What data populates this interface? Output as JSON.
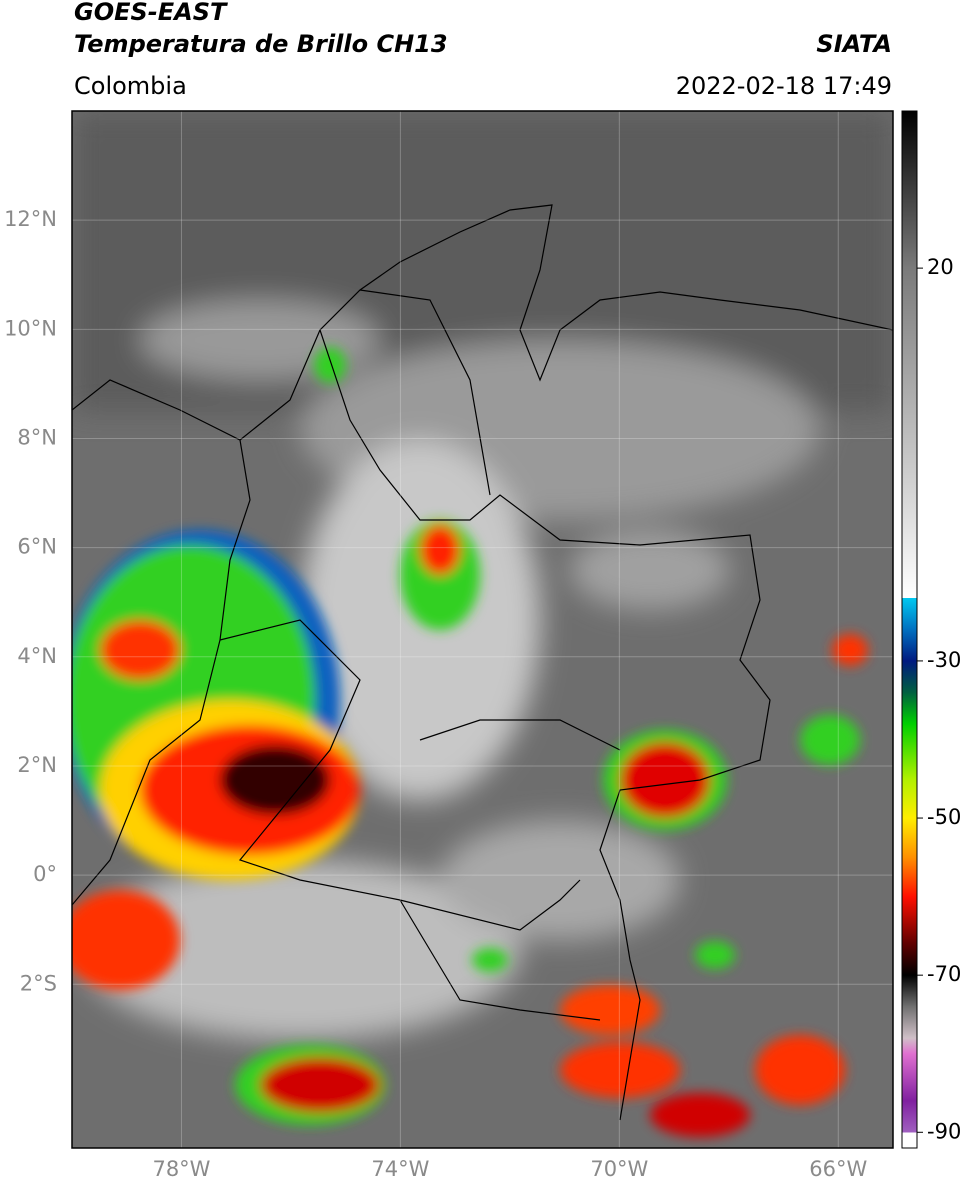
{
  "header": {
    "title": "GOES-EAST",
    "subtitle": "Temperatura de Brillo CH13",
    "source": "SIATA",
    "region": "Colombia",
    "datetime": "2022-02-18 17:49"
  },
  "map": {
    "xlim": [
      -80,
      -65
    ],
    "ylim": [
      -5,
      14
    ],
    "xticks": [
      {
        "value": -78,
        "label": "78°W"
      },
      {
        "value": -74,
        "label": "74°W"
      },
      {
        "value": -70,
        "label": "70°W"
      },
      {
        "value": -66,
        "label": "66°W"
      }
    ],
    "yticks": [
      {
        "value": 12,
        "label": "12°N"
      },
      {
        "value": 10,
        "label": "10°N"
      },
      {
        "value": 8,
        "label": "8°N"
      },
      {
        "value": 6,
        "label": "6°N"
      },
      {
        "value": 4,
        "label": "4°N"
      },
      {
        "value": 2,
        "label": "2°N"
      },
      {
        "value": 0,
        "label": "0°"
      },
      {
        "value": -2,
        "label": "2°S"
      }
    ],
    "grid": true
  },
  "colorbar": {
    "lim": [
      -92,
      40
    ],
    "ticks": [
      20,
      -30,
      -50,
      -70,
      -90
    ],
    "colorscale": [
      {
        "value": 40,
        "color": "#000000"
      },
      {
        "value": 20,
        "color": "#7a7a7a"
      },
      {
        "value": -22,
        "color": "#ffffff"
      },
      {
        "value": -22.01,
        "color": "#00c8f0"
      },
      {
        "value": -26,
        "color": "#0070c0"
      },
      {
        "value": -30,
        "color": "#001a80"
      },
      {
        "value": -34,
        "color": "#006040"
      },
      {
        "value": -38,
        "color": "#00d000"
      },
      {
        "value": -45,
        "color": "#b0f000"
      },
      {
        "value": -50,
        "color": "#ffee00"
      },
      {
        "value": -55,
        "color": "#ff9000"
      },
      {
        "value": -60,
        "color": "#ff1000"
      },
      {
        "value": -66,
        "color": "#600000"
      },
      {
        "value": -70,
        "color": "#000000"
      },
      {
        "value": -74,
        "color": "#707070"
      },
      {
        "value": -78,
        "color": "#d0c0c8"
      },
      {
        "value": -80,
        "color": "#e070d0"
      },
      {
        "value": -86,
        "color": "#8020a0"
      },
      {
        "value": -90,
        "color": "#a060c0"
      },
      {
        "value": -90.01,
        "color": "#ffffff"
      },
      {
        "value": -92,
        "color": "#ffffff"
      }
    ]
  }
}
